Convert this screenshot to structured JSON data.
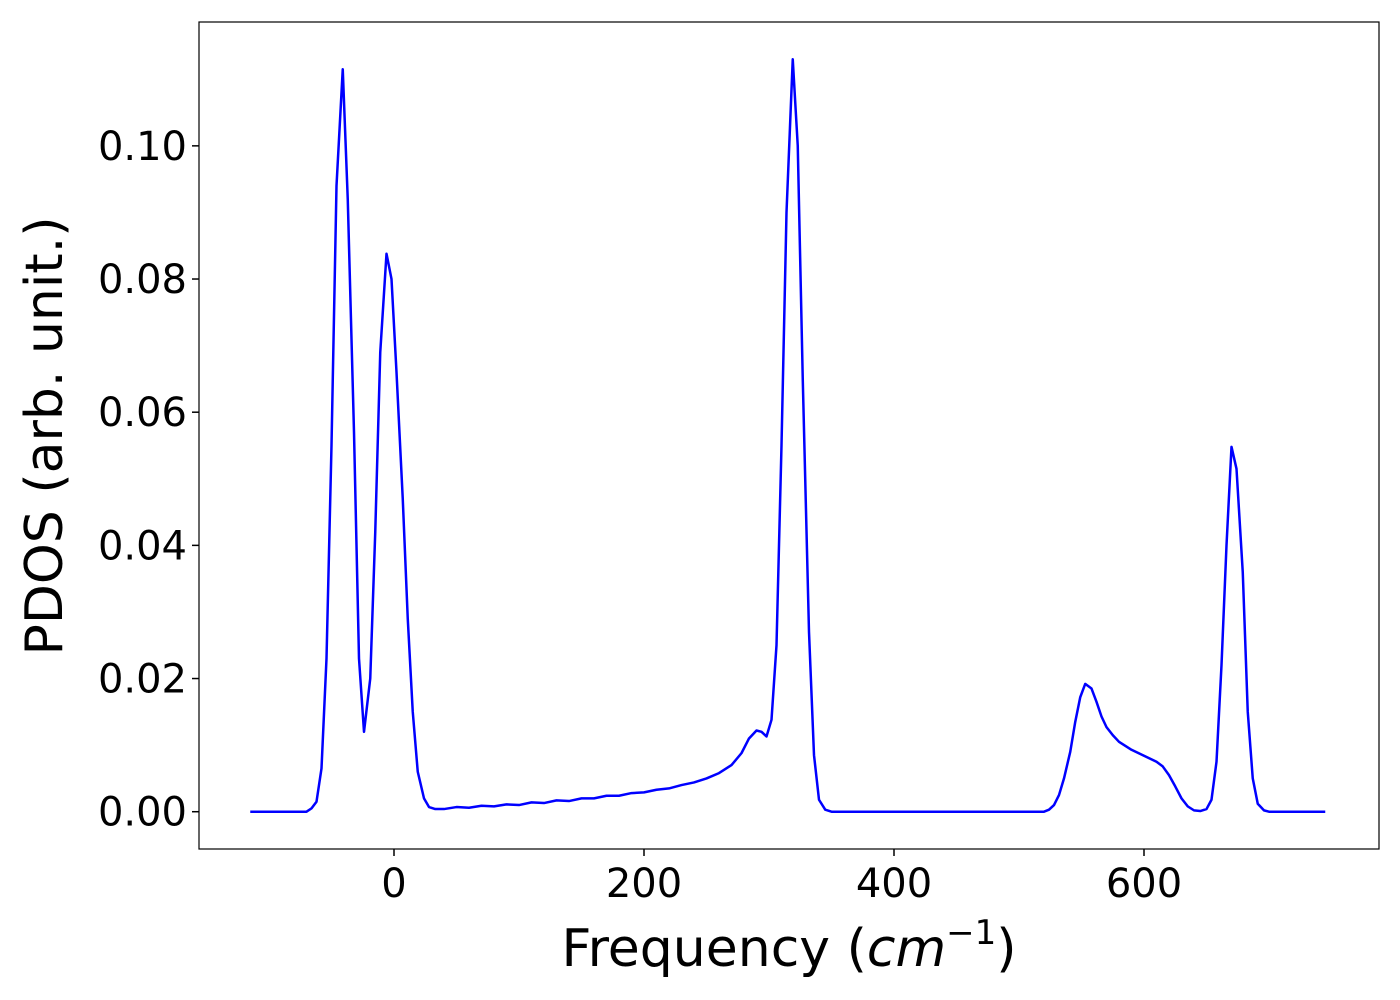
{
  "chart_data": {
    "type": "line",
    "ylabel": "PDOS (arb. unit.)",
    "xlabel": [
      "Frequency (",
      "cm",
      "−1",
      ")"
    ],
    "x": [
      -115,
      -70,
      -66,
      -62,
      -58,
      -54,
      -50,
      -46,
      -41,
      -37,
      -32,
      -28,
      -24,
      -19,
      -15,
      -11,
      -6,
      -2,
      2,
      7,
      11,
      15,
      19,
      24,
      28,
      33,
      40,
      50,
      60,
      70,
      80,
      90,
      100,
      110,
      120,
      130,
      140,
      150,
      160,
      170,
      180,
      190,
      200,
      210,
      220,
      230,
      240,
      250,
      260,
      270,
      278,
      284,
      290,
      294,
      298,
      302,
      306,
      310,
      314,
      319,
      323,
      327,
      332,
      336,
      340,
      345,
      350,
      520,
      524,
      528,
      532,
      536,
      541,
      545,
      549,
      553,
      558,
      562,
      566,
      570,
      575,
      580,
      590,
      600,
      610,
      615,
      620,
      625,
      630,
      635,
      640,
      645,
      650,
      654,
      658,
      662,
      666,
      670,
      674,
      679,
      683,
      687,
      691,
      696,
      700,
      745
    ],
    "series": [
      {
        "name": "PDOS",
        "color": "#0000ff",
        "values": [
          0,
          0,
          0.0005,
          0.0015,
          0.0065,
          0.023,
          0.055,
          0.094,
          0.1115,
          0.092,
          0.057,
          0.023,
          0.012,
          0.02,
          0.042,
          0.069,
          0.0838,
          0.08,
          0.066,
          0.047,
          0.029,
          0.015,
          0.006,
          0.002,
          0.0007,
          0.0004,
          0.0004,
          0.0007,
          0.0006,
          0.0009,
          0.0008,
          0.0011,
          0.001,
          0.0014,
          0.0013,
          0.0017,
          0.0016,
          0.002,
          0.002,
          0.0024,
          0.0024,
          0.0028,
          0.0029,
          0.0033,
          0.0035,
          0.004,
          0.0044,
          0.005,
          0.0058,
          0.007,
          0.0088,
          0.011,
          0.0122,
          0.012,
          0.0113,
          0.0138,
          0.025,
          0.055,
          0.09,
          0.113,
          0.1,
          0.065,
          0.027,
          0.0085,
          0.0018,
          0.0003,
          0,
          0,
          0.0003,
          0.001,
          0.0025,
          0.005,
          0.009,
          0.0135,
          0.0172,
          0.0192,
          0.0185,
          0.0165,
          0.0143,
          0.0127,
          0.0115,
          0.0105,
          0.0093,
          0.0084,
          0.0075,
          0.0068,
          0.0055,
          0.0038,
          0.002,
          0.0008,
          0.0002,
          0.0001,
          0.0004,
          0.0018,
          0.0075,
          0.022,
          0.04,
          0.0548,
          0.0515,
          0.036,
          0.015,
          0.005,
          0.0012,
          0.0002,
          0,
          0
        ]
      }
    ],
    "xlim": [
      -156,
      788
    ],
    "ylim": [
      -0.0056,
      0.1186
    ],
    "xticks": [
      0,
      200,
      400,
      600
    ],
    "yticks": [
      {
        "value": 0,
        "label": "0.00"
      },
      {
        "value": 0.02,
        "label": "0.02"
      },
      {
        "value": 0.04,
        "label": "0.04"
      },
      {
        "value": 0.06,
        "label": "0.06"
      },
      {
        "value": 0.08,
        "label": "0.08"
      },
      {
        "value": 0.1,
        "label": "0.10"
      }
    ],
    "grid": false
  }
}
